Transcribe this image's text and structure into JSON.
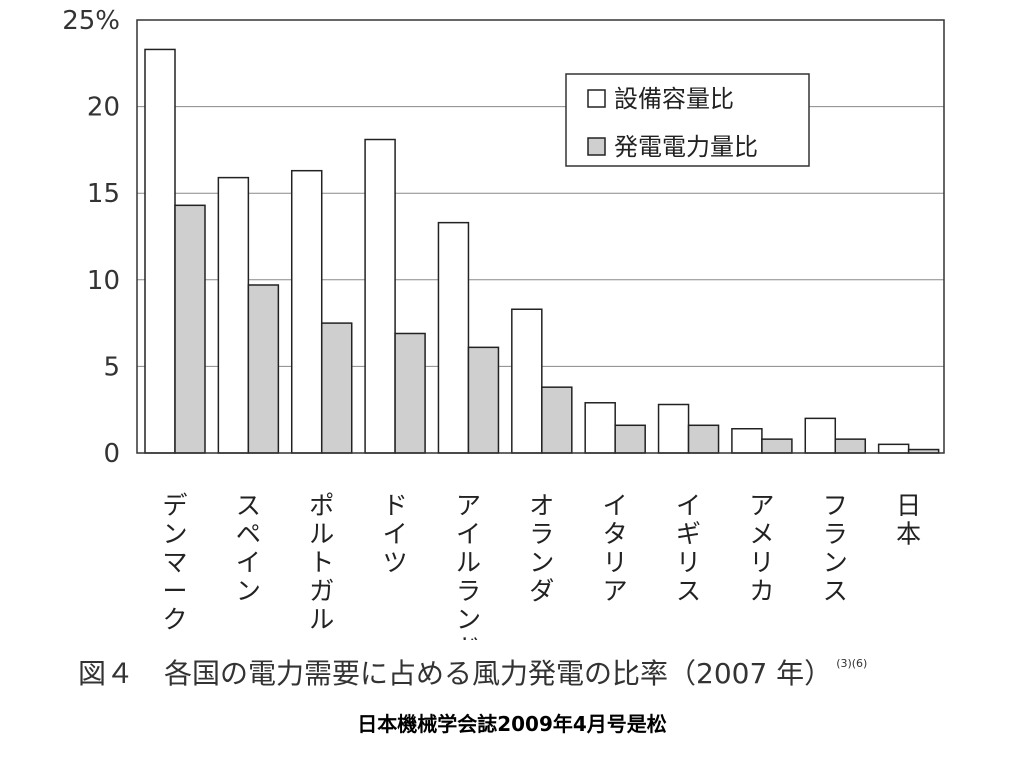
{
  "chart_data": {
    "type": "bar",
    "categories": [
      "デンマーク",
      "スペイン",
      "ポルトガル",
      "ドイツ",
      "アイルランド",
      "オランダ",
      "イタリア",
      "イギリス",
      "アメリカ",
      "フランス",
      "日本"
    ],
    "series": [
      {
        "name": "設備容量比",
        "values": [
          23.3,
          15.9,
          16.3,
          18.1,
          13.3,
          8.3,
          2.9,
          2.8,
          1.4,
          2.0,
          0.5
        ],
        "color": "#ffffff"
      },
      {
        "name": "発電電力量比",
        "values": [
          14.3,
          9.7,
          7.5,
          6.9,
          6.1,
          3.8,
          1.6,
          1.6,
          0.8,
          0.8,
          0.2
        ],
        "color": "#cfcfcf"
      }
    ],
    "y_ticks": [
      "0",
      "5",
      "10",
      "15",
      "20",
      "25%"
    ],
    "ylim": [
      0,
      25
    ],
    "grid": true,
    "legend_position": "top-right"
  },
  "caption": {
    "figure_no": "図４",
    "title": "各国の電力需要に占める風力発電の比率（2007 年）",
    "refs": "(3)(6)"
  },
  "source": "日本機械学会誌2009年4月号是松"
}
